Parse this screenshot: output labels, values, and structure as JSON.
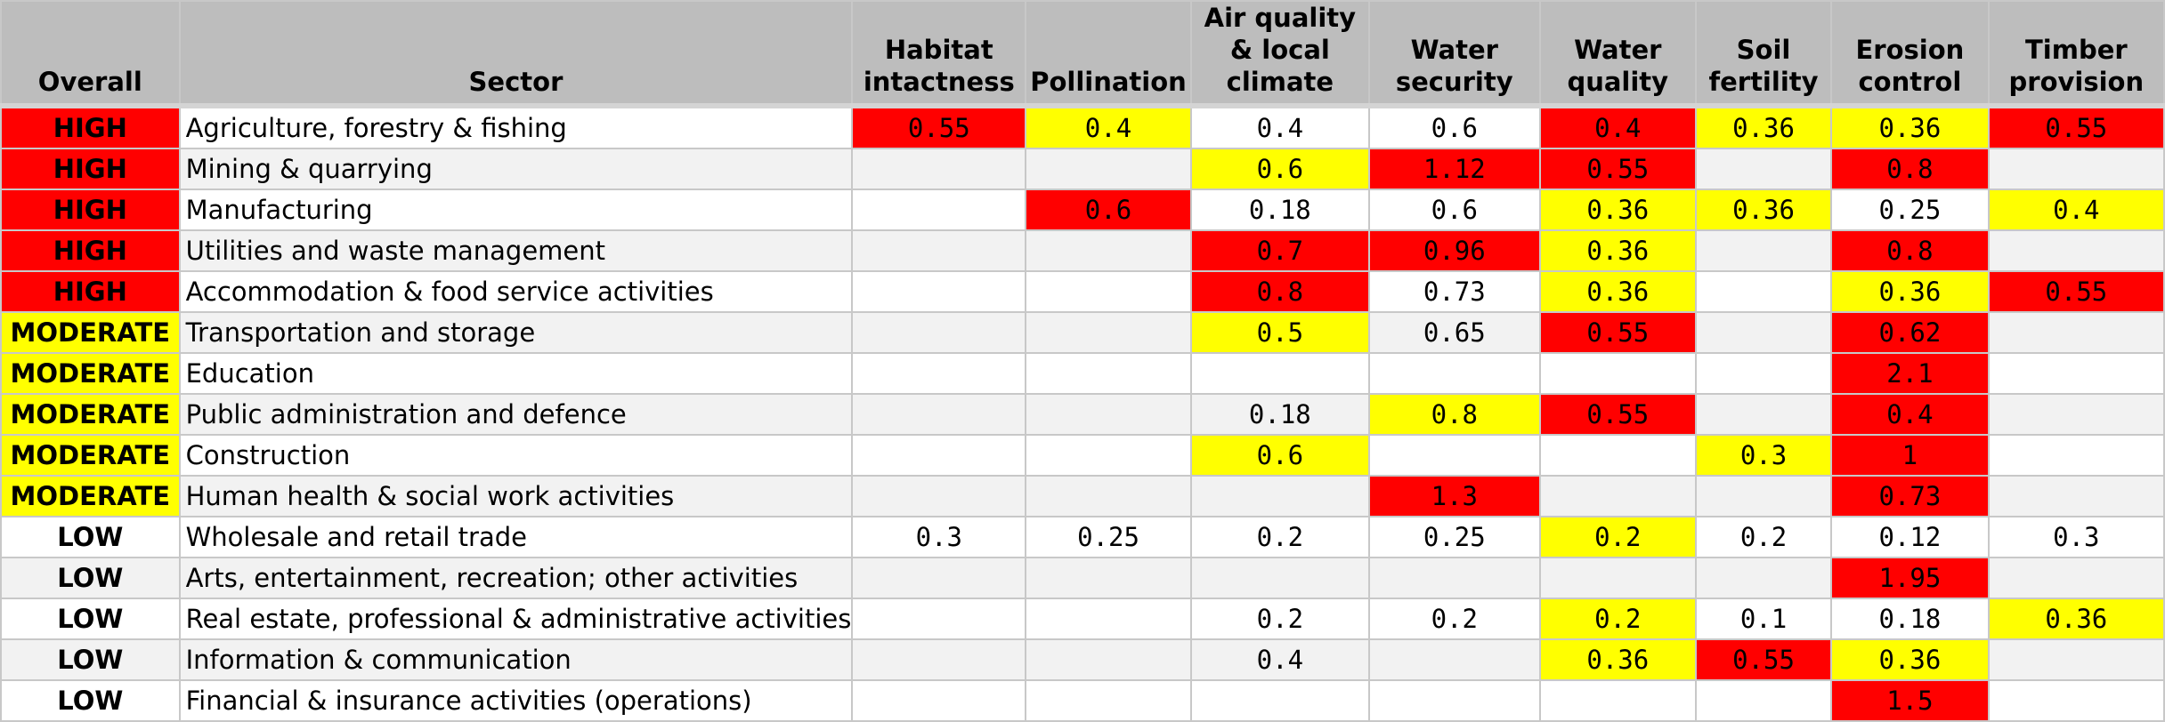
{
  "colors": {
    "high": "#ff0000",
    "moderate": "#ffff00",
    "header": "#bdbdbd",
    "stripe": "#f2f2f2"
  },
  "chart_data": {
    "type": "table",
    "columns": [
      "Overall",
      "Sector",
      "Habitat intactness",
      "Pollination",
      "Air quality & local climate",
      "Water security",
      "Water quality",
      "Soil fertility",
      "Erosion control",
      "Timber provision"
    ],
    "rows": [
      {
        "overall": "HIGH",
        "sector": "Agriculture, forestry & fishing",
        "values": [
          "0.55",
          "0.4",
          "0.4",
          "0.6",
          "0.4",
          "0.36",
          "0.36",
          "0.55"
        ],
        "fills": [
          "high",
          "moderate",
          "",
          "",
          "high",
          "moderate",
          "moderate",
          "high"
        ]
      },
      {
        "overall": "HIGH",
        "sector": "Mining & quarrying",
        "values": [
          "",
          "",
          "0.6",
          "1.12",
          "0.55",
          "",
          "0.8",
          ""
        ],
        "fills": [
          "",
          "",
          "moderate",
          "high",
          "high",
          "",
          "high",
          ""
        ]
      },
      {
        "overall": "HIGH",
        "sector": "Manufacturing",
        "values": [
          "",
          "0.6",
          "0.18",
          "0.6",
          "0.36",
          "0.36",
          "0.25",
          "0.4"
        ],
        "fills": [
          "",
          "high",
          "",
          "",
          "moderate",
          "moderate",
          "",
          "moderate"
        ]
      },
      {
        "overall": "HIGH",
        "sector": "Utilities and waste management",
        "values": [
          "",
          "",
          "0.7",
          "0.96",
          "0.36",
          "",
          "0.8",
          ""
        ],
        "fills": [
          "",
          "",
          "high",
          "high",
          "moderate",
          "",
          "high",
          ""
        ]
      },
      {
        "overall": "HIGH",
        "sector": "Accommodation & food service activities",
        "values": [
          "",
          "",
          "0.8",
          "0.73",
          "0.36",
          "",
          "0.36",
          "0.55"
        ],
        "fills": [
          "",
          "",
          "high",
          "",
          "moderate",
          "",
          "moderate",
          "high"
        ]
      },
      {
        "overall": "MODERATE",
        "sector": "Transportation and storage",
        "values": [
          "",
          "",
          "0.5",
          "0.65",
          "0.55",
          "",
          "0.62",
          ""
        ],
        "fills": [
          "",
          "",
          "moderate",
          "",
          "high",
          "",
          "high",
          ""
        ]
      },
      {
        "overall": "MODERATE",
        "sector": "Education",
        "values": [
          "",
          "",
          "",
          "",
          "",
          "",
          "2.1",
          ""
        ],
        "fills": [
          "",
          "",
          "",
          "",
          "",
          "",
          "high",
          ""
        ]
      },
      {
        "overall": "MODERATE",
        "sector": "Public administration and defence",
        "values": [
          "",
          "",
          "0.18",
          "0.8",
          "0.55",
          "",
          "0.4",
          ""
        ],
        "fills": [
          "",
          "",
          "",
          "moderate",
          "high",
          "",
          "high",
          ""
        ]
      },
      {
        "overall": "MODERATE",
        "sector": "Construction",
        "values": [
          "",
          "",
          "0.6",
          "",
          "",
          "0.3",
          "1",
          ""
        ],
        "fills": [
          "",
          "",
          "moderate",
          "",
          "",
          "moderate",
          "high",
          ""
        ]
      },
      {
        "overall": "MODERATE",
        "sector": "Human health & social work activities",
        "values": [
          "",
          "",
          "",
          "1.3",
          "",
          "",
          "0.73",
          ""
        ],
        "fills": [
          "",
          "",
          "",
          "high",
          "",
          "",
          "high",
          ""
        ]
      },
      {
        "overall": "LOW",
        "sector": "Wholesale and retail trade",
        "values": [
          "0.3",
          "0.25",
          "0.2",
          "0.25",
          "0.2",
          "0.2",
          "0.12",
          "0.3"
        ],
        "fills": [
          "",
          "",
          "",
          "",
          "moderate",
          "",
          "",
          ""
        ]
      },
      {
        "overall": "LOW",
        "sector": "Arts, entertainment, recreation; other activities",
        "values": [
          "",
          "",
          "",
          "",
          "",
          "",
          "1.95",
          ""
        ],
        "fills": [
          "",
          "",
          "",
          "",
          "",
          "",
          "high",
          ""
        ]
      },
      {
        "overall": "LOW",
        "sector": "Real estate, professional & administrative activities",
        "values": [
          "",
          "",
          "0.2",
          "0.2",
          "0.2",
          "0.1",
          "0.18",
          "0.36"
        ],
        "fills": [
          "",
          "",
          "",
          "",
          "moderate",
          "",
          "",
          "moderate"
        ]
      },
      {
        "overall": "LOW",
        "sector": "Information & communication",
        "values": [
          "",
          "",
          "0.4",
          "",
          "0.36",
          "0.55",
          "0.36",
          ""
        ],
        "fills": [
          "",
          "",
          "",
          "",
          "moderate",
          "high",
          "moderate",
          ""
        ]
      },
      {
        "overall": "LOW",
        "sector": "Financial & insurance activities (operations)",
        "values": [
          "",
          "",
          "",
          "",
          "",
          "",
          "1.5",
          ""
        ],
        "fills": [
          "",
          "",
          "",
          "",
          "",
          "",
          "high",
          ""
        ]
      }
    ]
  }
}
